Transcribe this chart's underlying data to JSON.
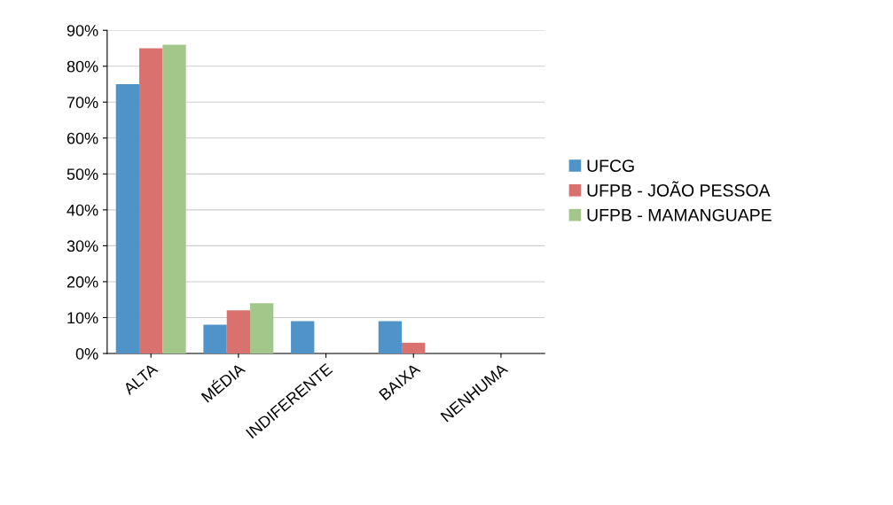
{
  "chart_data": {
    "type": "bar",
    "categories": [
      "ALTA",
      "MÉDIA",
      "INDIFERENTE",
      "BAIXA",
      "NENHUMA"
    ],
    "series": [
      {
        "name": "UFCG",
        "color": "#4f93c8",
        "values": [
          75,
          8,
          9,
          9,
          0
        ]
      },
      {
        "name": "UFPB - JOÃO PESSOA",
        "color": "#d9726f",
        "values": [
          85,
          12,
          0,
          3,
          0
        ]
      },
      {
        "name": "UFPB - MAMANGUAPE",
        "color": "#a3c68a",
        "values": [
          86,
          14,
          0,
          0,
          0
        ]
      }
    ],
    "ylim": [
      0,
      90
    ],
    "yticks": [
      {
        "value": 0,
        "label": "0%"
      },
      {
        "value": 10,
        "label": "10%"
      },
      {
        "value": 20,
        "label": "20%"
      },
      {
        "value": 30,
        "label": "30%"
      },
      {
        "value": 40,
        "label": "40%"
      },
      {
        "value": 50,
        "label": "50%"
      },
      {
        "value": 60,
        "label": "60%"
      },
      {
        "value": 70,
        "label": "70%"
      },
      {
        "value": 80,
        "label": "80%"
      },
      {
        "value": 90,
        "label": "90%"
      }
    ],
    "grid": "y",
    "legend": "right"
  }
}
